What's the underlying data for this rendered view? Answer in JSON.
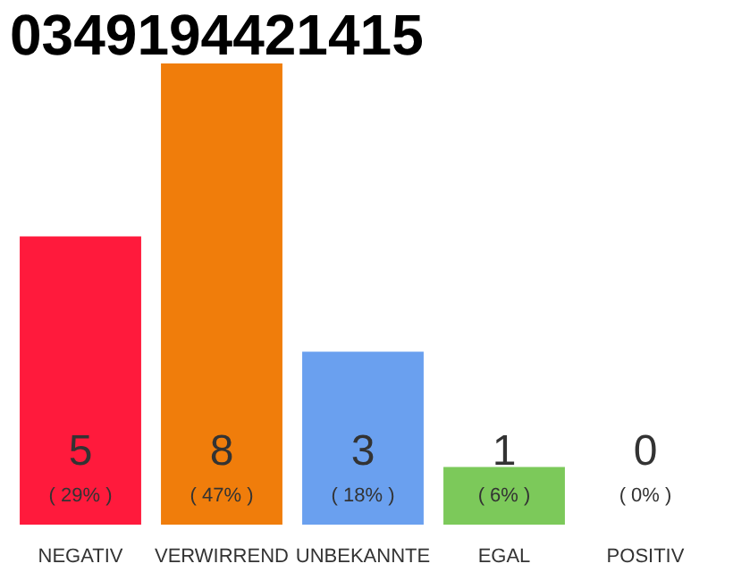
{
  "chart_data": {
    "type": "bar",
    "title": "0349194421415",
    "categories": [
      "NEGATIV",
      "VERWIRREND",
      "UNBEKANNTE",
      "EGAL",
      "POSITIV"
    ],
    "values": [
      5,
      8,
      3,
      1,
      0
    ],
    "colors": [
      "#ff1a3c",
      "#f07d0b",
      "#6aa0ef",
      "#7cc95a",
      "#eeeeee"
    ],
    "data_labels": true,
    "annotations": [
      "( 29% )",
      "( 47% )",
      "( 18% )",
      "( 6% )",
      "( 0% )"
    ],
    "tick_labels": "x",
    "grid": false
  }
}
